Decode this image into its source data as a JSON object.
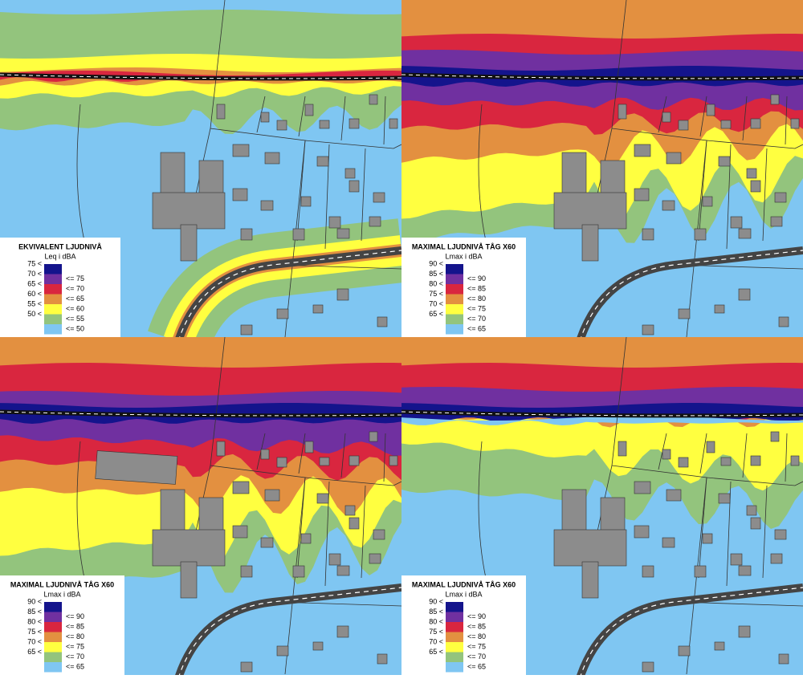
{
  "panels": [
    {
      "legend": {
        "title": "EKVIVALENT LJUDNIVÅ",
        "subtitle": "Leq i dBA",
        "rows": [
          {
            "low": "75 <",
            "color": "#14148c"
          },
          {
            "low": "70 <",
            "high": "<= 75",
            "color": "#7030a0"
          },
          {
            "low": "65 <",
            "high": "<= 70",
            "color": "#d9263f"
          },
          {
            "low": "60 <",
            "high": "<= 65",
            "color": "#e39040"
          },
          {
            "low": "55 <",
            "high": "<= 60",
            "color": "#ffff40"
          },
          {
            "low": "50 <",
            "high": "<= 55",
            "color": "#93c47d"
          },
          {
            "high": "<= 50",
            "color": "#7fc6f2"
          }
        ]
      }
    },
    {
      "legend": {
        "title": "MAXIMAL LJUDNIVÅ TÅG X60",
        "subtitle": "Lmax i dBA",
        "rows": [
          {
            "low": "90 <",
            "color": "#14148c"
          },
          {
            "low": "85 <",
            "high": "<= 90",
            "color": "#7030a0"
          },
          {
            "low": "80 <",
            "high": "<= 85",
            "color": "#d9263f"
          },
          {
            "low": "75 <",
            "high": "<= 80",
            "color": "#e39040"
          },
          {
            "low": "70 <",
            "high": "<= 75",
            "color": "#ffff40"
          },
          {
            "low": "65 <",
            "high": "<= 70",
            "color": "#93c47d"
          },
          {
            "high": "<= 65",
            "color": "#7fc6f2"
          }
        ]
      }
    },
    {
      "legend": {
        "title": "MAXIMAL LJUDNIVÅ TÅG X60",
        "subtitle": "Lmax i dBA",
        "rows": [
          {
            "low": "90 <",
            "color": "#14148c"
          },
          {
            "low": "85 <",
            "high": "<= 90",
            "color": "#7030a0"
          },
          {
            "low": "80 <",
            "high": "<= 85",
            "color": "#d9263f"
          },
          {
            "low": "75 <",
            "high": "<= 80",
            "color": "#e39040"
          },
          {
            "low": "70 <",
            "high": "<= 75",
            "color": "#ffff40"
          },
          {
            "low": "65 <",
            "high": "<= 70",
            "color": "#93c47d"
          },
          {
            "high": "<= 65",
            "color": "#7fc6f2"
          }
        ]
      }
    },
    {
      "legend": {
        "title": "MAXIMAL LJUDNIVÅ TÅG X60",
        "subtitle": "Lmax i dBA",
        "rows": [
          {
            "low": "90 <",
            "color": "#14148c"
          },
          {
            "low": "85 <",
            "high": "<= 90",
            "color": "#7030a0"
          },
          {
            "low": "80 <",
            "high": "<= 85",
            "color": "#d9263f"
          },
          {
            "low": "75 <",
            "high": "<= 80",
            "color": "#e39040"
          },
          {
            "low": "70 <",
            "high": "<= 75",
            "color": "#ffff40"
          },
          {
            "low": "65 <",
            "high": "<= 70",
            "color": "#93c47d"
          },
          {
            "high": "<= 65",
            "color": "#7fc6f2"
          }
        ]
      }
    }
  ]
}
